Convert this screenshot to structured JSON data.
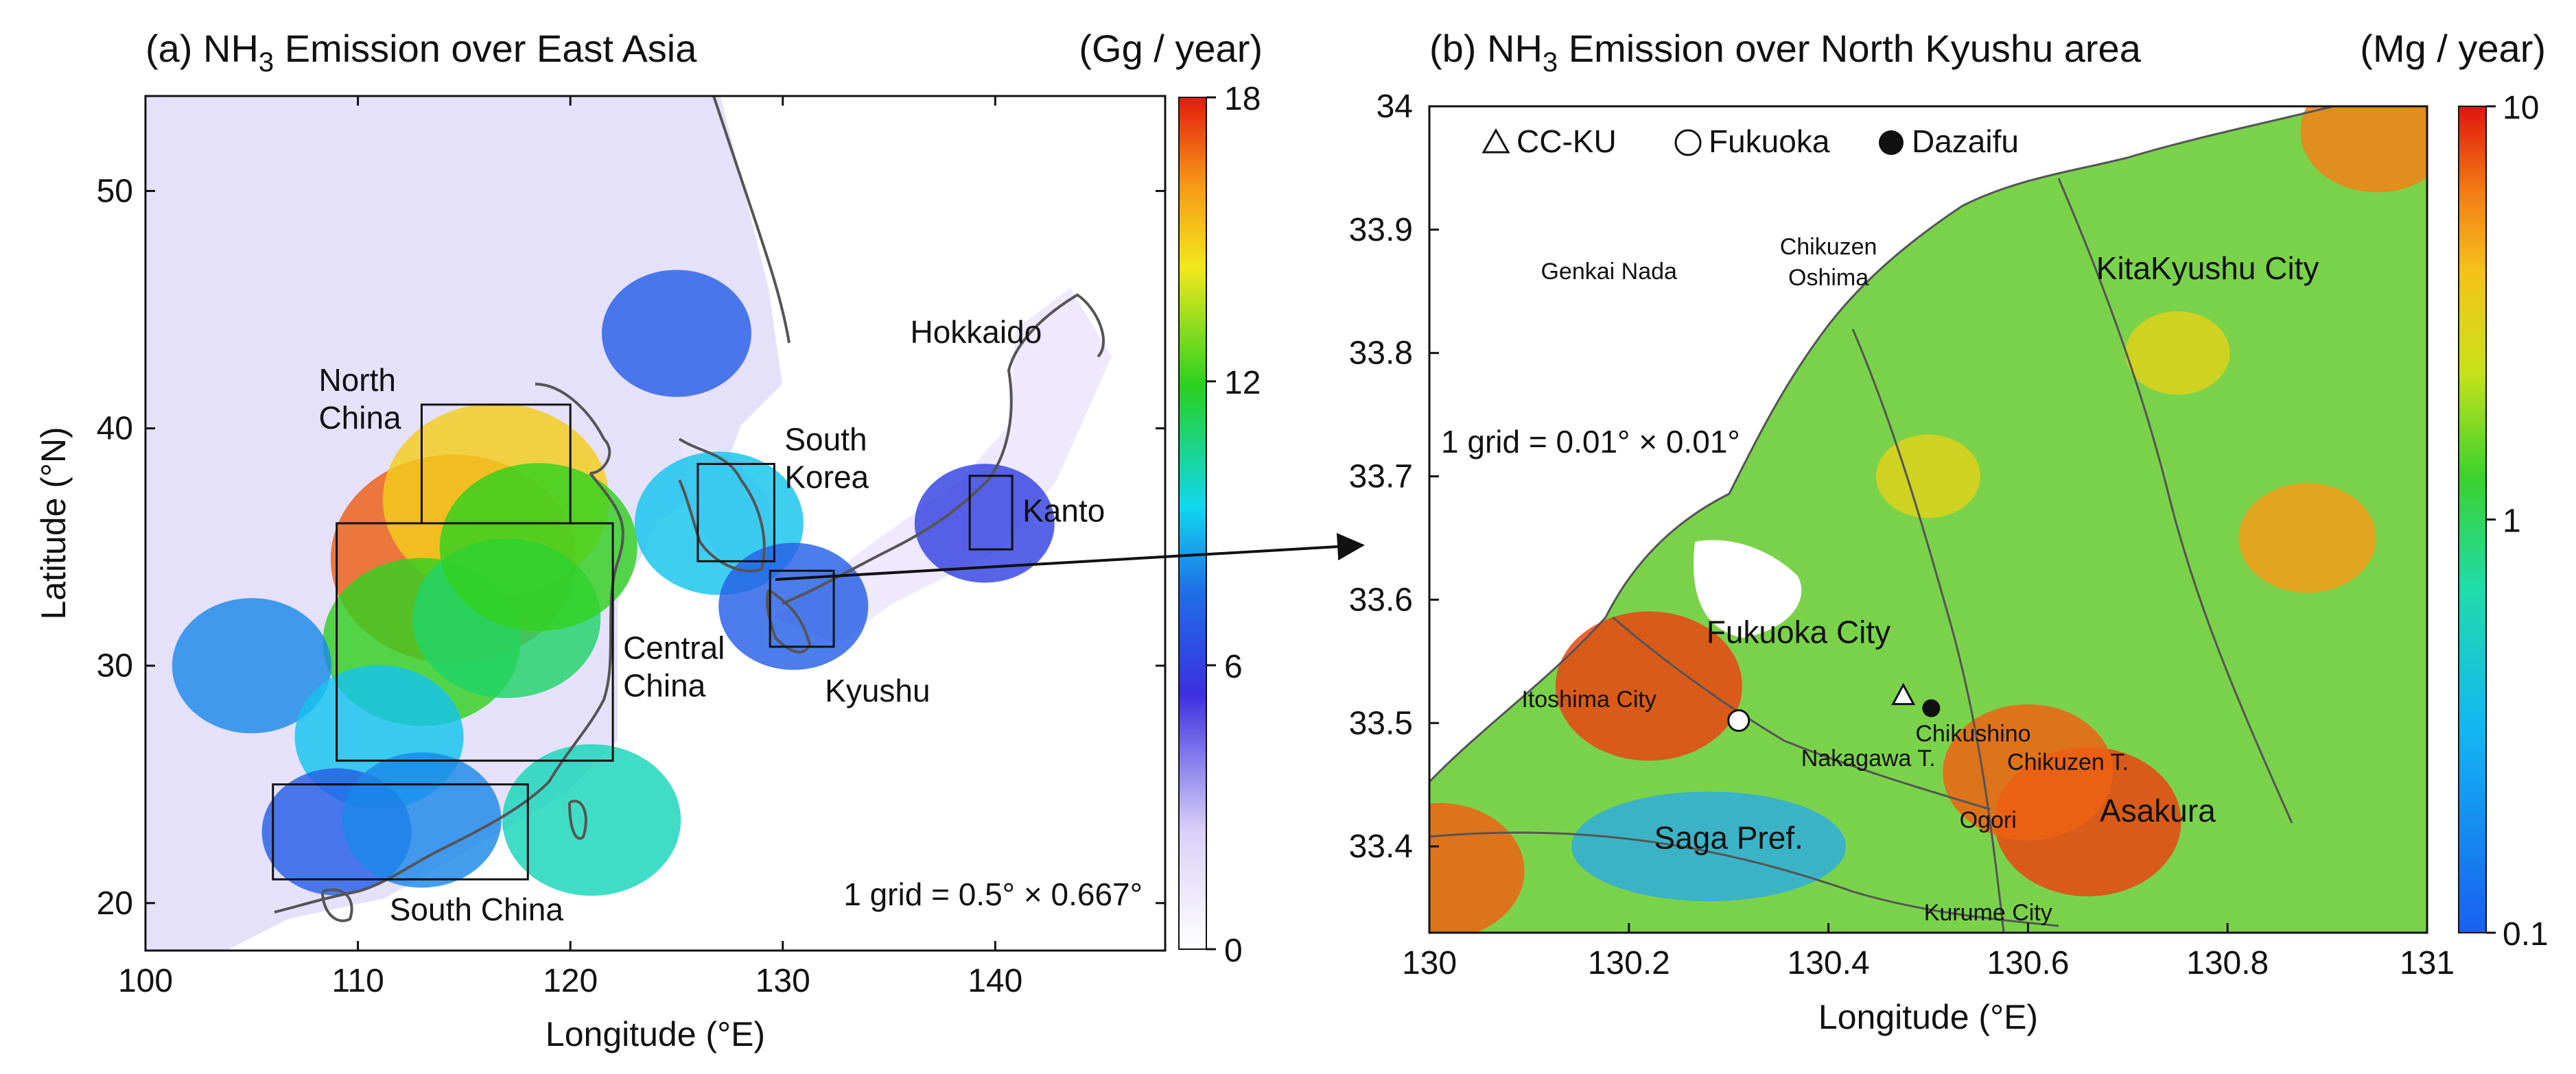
{
  "chart_data": [
    {
      "type": "heatmap",
      "title_prefix": "(a) NH",
      "title_sub": "3",
      "title_suffix": " Emission over East Asia",
      "unit": "(Gg / year)",
      "xlabel": "Longitude (°E)",
      "ylabel": "Latitude (°N)",
      "xlim": [
        100,
        148
      ],
      "ylim": [
        18,
        54
      ],
      "xticks": [
        100,
        110,
        120,
        130,
        140
      ],
      "yticks": [
        20,
        30,
        40,
        50
      ],
      "colorbar": {
        "min": 0,
        "max": 18,
        "ticks": [
          0,
          6,
          12,
          18
        ],
        "scale": "linear"
      },
      "grid_note": "1 grid = 0.5° × 0.667°",
      "regions": [
        {
          "name": "North China",
          "line1": "North",
          "line2": "China",
          "lon": [
            113,
            120
          ],
          "lat": [
            36,
            41
          ]
        },
        {
          "name": "Central China",
          "line1": "Central",
          "line2": "China",
          "lon": [
            109,
            122
          ],
          "lat": [
            26,
            36
          ]
        },
        {
          "name": "South China",
          "line1": "South China",
          "line2": "",
          "lon": [
            106,
            118
          ],
          "lat": [
            21,
            25
          ]
        },
        {
          "name": "South Korea",
          "line1": "South",
          "line2": "Korea",
          "lon": [
            126,
            129.6
          ],
          "lat": [
            34.4,
            38.5
          ]
        },
        {
          "name": "Kyushu",
          "line1": "Kyushu",
          "line2": "",
          "lon": [
            129.4,
            132.4
          ],
          "lat": [
            30.8,
            34
          ]
        },
        {
          "name": "Kanto",
          "line1": "Kanto",
          "line2": "",
          "lon": [
            138.8,
            140.8
          ],
          "lat": [
            34.9,
            38
          ]
        }
      ],
      "place_labels": [
        {
          "text": "Hokkaido",
          "lon": 136,
          "lat": 43.6
        }
      ],
      "hotspots": [
        {
          "lon": 114.5,
          "lat": 34.5,
          "value": 17
        },
        {
          "lon": 116.5,
          "lat": 37,
          "value": 15
        },
        {
          "lon": 113,
          "lat": 31,
          "value": 12
        },
        {
          "lon": 117,
          "lat": 32,
          "value": 11
        },
        {
          "lon": 118.5,
          "lat": 35,
          "value": 12
        },
        {
          "lon": 105,
          "lat": 30,
          "value": 8
        },
        {
          "lon": 111,
          "lat": 27,
          "value": 9
        },
        {
          "lon": 109,
          "lat": 23,
          "value": 7
        },
        {
          "lon": 113,
          "lat": 23.5,
          "value": 8
        },
        {
          "lon": 125,
          "lat": 44,
          "value": 7
        },
        {
          "lon": 127,
          "lat": 36,
          "value": 9
        },
        {
          "lon": 130.5,
          "lat": 32.5,
          "value": 7
        },
        {
          "lon": 139.5,
          "lat": 36,
          "value": 6
        },
        {
          "lon": 121,
          "lat": 23.5,
          "value": 10
        }
      ]
    },
    {
      "type": "heatmap",
      "title_prefix": "(b) NH",
      "title_sub": "3",
      "title_suffix": " Emission over North Kyushu area",
      "unit": "(Mg / year)",
      "xlabel": "Longitude (°E)",
      "ylabel": "",
      "xlim": [
        130,
        131
      ],
      "ylim": [
        33.33,
        34
      ],
      "xticks": [
        "130",
        "130.2",
        "130.4",
        "130.6",
        "130.8",
        "131"
      ],
      "yticks": [
        "33.4",
        "33.5",
        "33.6",
        "33.7",
        "33.8",
        "33.9",
        "34"
      ],
      "colorbar": {
        "min": 0.1,
        "max": 10,
        "ticks": [
          "0.1",
          "1",
          "10"
        ],
        "scale": "log"
      },
      "grid_note": "1 grid = 0.01° × 0.01°",
      "legend": [
        {
          "symbol": "triangle",
          "label": "CC-KU"
        },
        {
          "symbol": "open-circle",
          "label": "Fukuoka"
        },
        {
          "symbol": "filled-circle",
          "label": "Dazaifu"
        }
      ],
      "stations": [
        {
          "name": "CC-KU",
          "lon": 130.475,
          "lat": 33.522
        },
        {
          "name": "Fukuoka",
          "lon": 130.31,
          "lat": 33.502
        },
        {
          "name": "Dazaifu",
          "lon": 130.503,
          "lat": 33.512
        }
      ],
      "place_labels": [
        {
          "text": "Genkai Nada",
          "lon": 130.18,
          "lat": 33.86,
          "size": "small",
          "color": "#111111"
        },
        {
          "text": "Chikuzen",
          "lon": 130.4,
          "lat": 33.88,
          "size": "small",
          "color": "#111111"
        },
        {
          "text": "Oshima",
          "lon": 130.4,
          "lat": 33.855,
          "size": "small",
          "color": "#111111"
        },
        {
          "text": "KitaKyushu City",
          "lon": 130.78,
          "lat": 33.86,
          "size": "big",
          "color": "#111111"
        },
        {
          "text": "Fukuoka City",
          "lon": 130.37,
          "lat": 33.565,
          "size": "big",
          "color": "#111111"
        },
        {
          "text": "Itoshima City",
          "lon": 130.16,
          "lat": 33.513,
          "size": "small",
          "color": "#111111"
        },
        {
          "text": "Chikushino",
          "lon": 130.545,
          "lat": 33.485,
          "size": "small",
          "color": "#111111"
        },
        {
          "text": "Nakagawa T.",
          "lon": 130.44,
          "lat": 33.465,
          "size": "small",
          "color": "#111111"
        },
        {
          "text": "Chikuzen T.",
          "lon": 130.64,
          "lat": 33.462,
          "size": "small",
          "color": "#111111"
        },
        {
          "text": "Saga Pref.",
          "lon": 130.3,
          "lat": 33.398,
          "size": "big",
          "color": "#111111"
        },
        {
          "text": "Ogori",
          "lon": 130.56,
          "lat": 33.415,
          "size": "small",
          "color": "#111111"
        },
        {
          "text": "Asakura",
          "lon": 130.73,
          "lat": 33.42,
          "size": "big",
          "color": "#111111"
        },
        {
          "text": "Kurume City",
          "lon": 130.56,
          "lat": 33.34,
          "size": "small",
          "color": "#111111"
        }
      ],
      "hotspots": [
        {
          "lon": 130.22,
          "lat": 33.53,
          "value": 8
        },
        {
          "lon": 130.66,
          "lat": 33.42,
          "value": 8
        },
        {
          "lon": 130.6,
          "lat": 33.46,
          "value": 7
        },
        {
          "lon": 130.88,
          "lat": 33.65,
          "value": 5
        },
        {
          "lon": 130.95,
          "lat": 33.98,
          "value": 6
        },
        {
          "lon": 130.5,
          "lat": 33.7,
          "value": 3
        },
        {
          "lon": 130.75,
          "lat": 33.8,
          "value": 3
        },
        {
          "lon": 130.01,
          "lat": 33.38,
          "value": 7
        }
      ]
    }
  ],
  "arrow": {
    "from": "Kyushu",
    "to": "panel-b"
  }
}
